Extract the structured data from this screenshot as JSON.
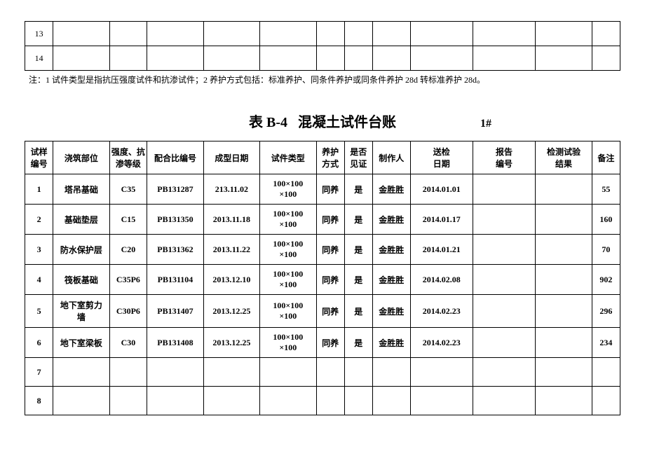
{
  "top_table": {
    "rows": [
      {
        "index": "13"
      },
      {
        "index": "14"
      }
    ],
    "column_count": 13
  },
  "note": "注：1 试件类型是指抗压强度试件和抗渗试件；2 养护方式包括：标准养护、同条件养护或同条件养护 28d 转标准养护 28d。",
  "title": {
    "label": "表 B-4",
    "text": "混凝土试件台账",
    "right": "1#"
  },
  "main_table": {
    "headers": [
      "试样编号",
      "浇筑部位",
      "强度、抗渗等级",
      "配合比编号",
      "成型日期",
      "试件类型",
      "养护方式",
      "是否见证",
      "制作人",
      "送检日期",
      "报告编号",
      "检测试验结果",
      "备注"
    ],
    "header_lines": {
      "0": [
        "试样",
        "编号"
      ],
      "2": [
        "强度、抗",
        "渗等级"
      ],
      "6": [
        "养护",
        "方式"
      ],
      "7": [
        "是否",
        "见证"
      ],
      "9": [
        "送检",
        "日期"
      ],
      "10": [
        "报告",
        "编号"
      ],
      "11": [
        "检测试验",
        "结果"
      ]
    },
    "col_widths": [
      "col-narrow",
      "col-med",
      "col-sm",
      "col-med",
      "col-med",
      "col-med",
      "col-narrow",
      "col-narrow",
      "col-sm",
      "col-wide",
      "col-wide",
      "col-med",
      "col-narrow"
    ],
    "rows": [
      {
        "cells": [
          "1",
          "塔吊基础",
          "C35",
          "PB131287",
          "213.11.02",
          "100×100×100",
          "同养",
          "是",
          "金胜胜",
          "2014.01.01",
          "",
          "",
          "55"
        ]
      },
      {
        "cells": [
          "2",
          "基础垫层",
          "C15",
          "PB131350",
          "2013.11.18",
          "100×100×100",
          "同养",
          "是",
          "金胜胜",
          "2014.01.17",
          "",
          "",
          "160"
        ]
      },
      {
        "cells": [
          "3",
          "防水保护层",
          "C20",
          "PB131362",
          "2013.11.22",
          "100×100×100",
          "同养",
          "是",
          "金胜胜",
          "2014.01.21",
          "",
          "",
          "70"
        ]
      },
      {
        "cells": [
          "4",
          "筏板基础",
          "C35P6",
          "PB131104",
          "2013.12.10",
          "100×100×100",
          "同养",
          "是",
          "金胜胜",
          "2014.02.08",
          "",
          "",
          "902"
        ]
      },
      {
        "cells": [
          "5",
          "地下室剪力墙",
          "C30P6",
          "PB131407",
          "2013.12.25",
          "100×100×100",
          "同养",
          "是",
          "金胜胜",
          "2014.02.23",
          "",
          "",
          "296"
        ]
      },
      {
        "cells": [
          "6",
          "地下室梁板",
          "C30",
          "PB131408",
          "2013.12.25",
          "100×100×100",
          "同养",
          "是",
          "金胜胜",
          "2014.02.23",
          "",
          "",
          "234"
        ]
      },
      {
        "cells": [
          "7",
          "",
          "",
          "",
          "",
          "",
          "",
          "",
          "",
          "",
          "",
          "",
          ""
        ]
      },
      {
        "cells": [
          "8",
          "",
          "",
          "",
          "",
          "",
          "",
          "",
          "",
          "",
          "",
          "",
          ""
        ]
      }
    ],
    "two_line_cells": {
      "5": [
        "100×100",
        "×100"
      ],
      "r4c1": [
        "地下室剪力",
        "墙"
      ]
    }
  }
}
